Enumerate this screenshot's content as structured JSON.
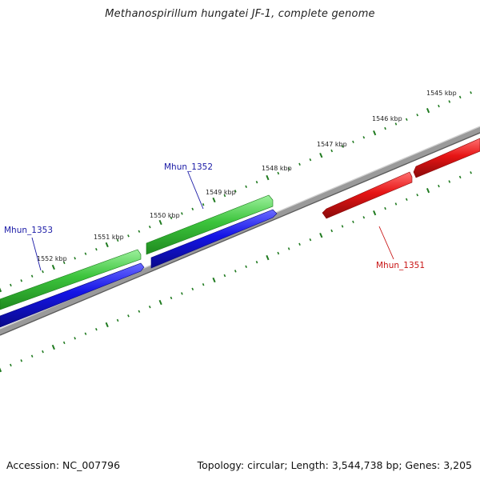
{
  "title": "Methanospirillum hungatei JF-1, complete genome",
  "footer": {
    "accession": "Accession: NC_007796",
    "summary": "Topology: circular; Length: 3,544,738 bp; Genes: 3,205"
  },
  "colors": {
    "backbone": "#8c8c8c",
    "ticks": "#1f7a1f",
    "forward_gene": "#3cc43c",
    "cds": "#1414e6",
    "reverse_gene": "#e61414",
    "forward_label": "#1a1aa6",
    "reverse_label": "#c81414"
  },
  "ticks": [
    {
      "label": "1545 kbp"
    },
    {
      "label": "1546 kbp"
    },
    {
      "label": "1547 kbp"
    },
    {
      "label": "1548 kbp"
    },
    {
      "label": "1549 kbp"
    },
    {
      "label": "1550 kbp"
    },
    {
      "label": "1551 kbp"
    },
    {
      "label": "1552 kbp"
    }
  ],
  "genes": [
    {
      "name": "Mhun_1353",
      "strand": "forward"
    },
    {
      "name": "Mhun_1352",
      "strand": "forward"
    },
    {
      "name": "Mhun_1351",
      "strand": "reverse"
    }
  ]
}
